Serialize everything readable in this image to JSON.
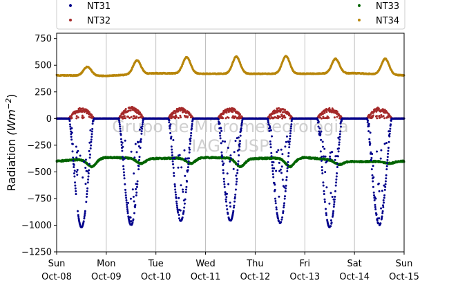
{
  "chart_data": {
    "type": "scatter",
    "ylabel_main": "Radiation ",
    "ylabel_unit": "(Wm",
    "ylabel_exp": "−2",
    "ylabel_close": ")",
    "ylim": [
      -1250,
      800
    ],
    "yticks": [
      -1250,
      -1000,
      -750,
      -500,
      -250,
      0,
      250,
      500,
      750
    ],
    "ytick_labels": [
      "−1250",
      "−1000",
      "−750",
      "−500",
      "−250",
      "0",
      "250",
      "500",
      "750"
    ],
    "xlim": [
      "2023-10-08",
      "2023-10-15"
    ],
    "xticks": [
      {
        "day": "Sun",
        "date": "Oct-08"
      },
      {
        "day": "Mon",
        "date": "Oct-09"
      },
      {
        "day": "Tue",
        "date": "Oct-10"
      },
      {
        "day": "Wed",
        "date": "Oct-11"
      },
      {
        "day": "Thu",
        "date": "Oct-12"
      },
      {
        "day": "Fri",
        "date": "Oct-13"
      },
      {
        "day": "Sat",
        "date": "Oct-14"
      },
      {
        "day": "Sun",
        "date": "Oct-15"
      }
    ],
    "grid": "vertical",
    "legend_placement": "top",
    "watermark": [
      "Grupo de Micrometeorologia",
      "IAG / USP"
    ],
    "series": [
      {
        "name": "NT31",
        "color": "#00008b",
        "daily_min": [
          -1020,
          -1000,
          -960,
          -960,
          -980,
          -1020,
          -1000
        ],
        "pattern": "0 at night, daytime negative dip to daily_min with scattered points"
      },
      {
        "name": "NT32",
        "color": "#a52a2a",
        "daily_max": [
          100,
          110,
          100,
          100,
          100,
          100,
          105
        ],
        "pattern": "0 at night, daytime bump to daily_max"
      },
      {
        "name": "NT33",
        "color": "#006400",
        "night_level": [
          -400,
          -365,
          -375,
          -365,
          -375,
          -365,
          -405
        ],
        "day_level": [
          -450,
          -420,
          -420,
          -450,
          -450,
          -430,
          -420
        ],
        "end_value": -400
      },
      {
        "name": "NT34",
        "color": "#b8860b",
        "night_level": [
          405,
          400,
          425,
          420,
          420,
          420,
          425
        ],
        "daily_max": [
          485,
          545,
          575,
          580,
          585,
          560,
          560
        ],
        "end_value": 405
      }
    ]
  }
}
